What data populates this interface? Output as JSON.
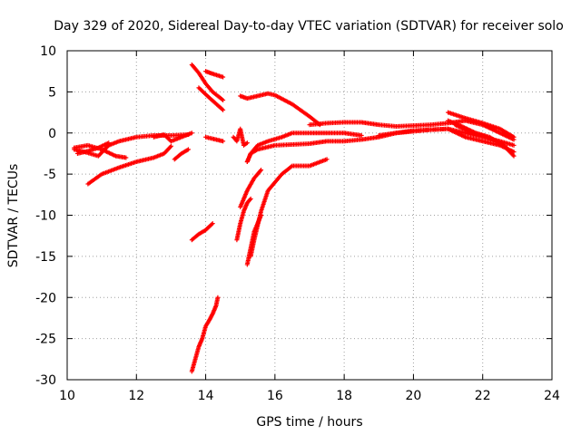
{
  "chart_data": {
    "type": "scatter",
    "title": "Day 329 of 2020, Sidereal Day-to-day VTEC variation (SDTVAR) for receiver solo",
    "xlabel": "GPS time / hours",
    "ylabel": "SDTVAR / TECUs",
    "xlim": [
      10,
      24
    ],
    "ylim": [
      -30,
      10
    ],
    "xticks": [
      10,
      12,
      14,
      16,
      18,
      20,
      22,
      24
    ],
    "yticks": [
      -30,
      -25,
      -20,
      -15,
      -10,
      -5,
      0,
      5,
      10
    ],
    "xtick_labels": [
      "10",
      "12",
      "14",
      "16",
      "18",
      "20",
      "22",
      "24"
    ],
    "ytick_labels": [
      "-30",
      "-25",
      "-20",
      "-15",
      "-10",
      "-5",
      "0",
      "5",
      "10"
    ],
    "grid": true,
    "marker": "+",
    "color": "#ff0000",
    "tracks": [
      {
        "x": [
          10.2,
          10.5,
          10.9,
          11.2,
          11.5,
          12.0,
          12.5,
          13.0,
          13.5
        ],
        "y": [
          -2.0,
          -2.3,
          -2.8,
          -1.5,
          -1.0,
          -0.5,
          -0.3,
          -0.3,
          -0.2
        ]
      },
      {
        "x": [
          10.2,
          10.6,
          11.0,
          11.4,
          11.7
        ],
        "y": [
          -1.8,
          -1.5,
          -2.0,
          -2.8,
          -3.0
        ]
      },
      {
        "x": [
          10.3,
          10.6,
          10.9,
          11.2
        ],
        "y": [
          -2.5,
          -2.2,
          -1.8,
          -1.2
        ]
      },
      {
        "x": [
          10.6,
          11.0,
          11.5,
          12.0,
          12.5,
          12.8,
          13.0
        ],
        "y": [
          -6.2,
          -5.0,
          -4.2,
          -3.5,
          -3.0,
          -2.5,
          -1.6
        ]
      },
      {
        "x": [
          12.5,
          12.8,
          13.0,
          13.3,
          13.6
        ],
        "y": [
          -0.5,
          -0.2,
          -1.0,
          -0.5,
          0.0
        ]
      },
      {
        "x": [
          13.1,
          13.3,
          13.5
        ],
        "y": [
          -3.2,
          -2.5,
          -2.0
        ]
      },
      {
        "x": [
          13.6,
          13.8,
          14.0,
          14.2,
          14.5
        ],
        "y": [
          8.3,
          7.3,
          6.0,
          5.0,
          4.0
        ]
      },
      {
        "x": [
          14.0,
          14.2,
          14.5
        ],
        "y": [
          7.5,
          7.2,
          6.8
        ]
      },
      {
        "x": [
          13.8,
          14.1,
          14.5
        ],
        "y": [
          5.5,
          4.3,
          2.8
        ]
      },
      {
        "x": [
          13.6,
          13.8,
          14.0,
          14.2
        ],
        "y": [
          -13.0,
          -12.3,
          -11.8,
          -11.0
        ]
      },
      {
        "x": [
          13.6,
          13.7,
          13.8,
          13.9,
          14.0,
          14.1,
          14.2,
          14.3,
          14.35
        ],
        "y": [
          -29.0,
          -27.5,
          -26.0,
          -25.0,
          -23.5,
          -22.8,
          -22.0,
          -21.0,
          -20.0
        ]
      },
      {
        "x": [
          14.0,
          14.2,
          14.5
        ],
        "y": [
          -0.5,
          -0.7,
          -1.0
        ]
      },
      {
        "x": [
          14.8,
          14.9,
          15.0,
          15.1,
          15.2
        ],
        "y": [
          -0.5,
          -1.0,
          0.5,
          -1.5,
          -1.2
        ]
      },
      {
        "x": [
          14.9,
          15.0,
          15.1,
          15.2,
          15.3
        ],
        "y": [
          -13.0,
          -11.0,
          -9.5,
          -8.5,
          -8.0
        ]
      },
      {
        "x": [
          15.0,
          15.2,
          15.5,
          15.8,
          16.0,
          16.5,
          17.0,
          17.3
        ],
        "y": [
          4.5,
          4.2,
          4.5,
          4.8,
          4.6,
          3.5,
          2.0,
          1.0
        ]
      },
      {
        "x": [
          15.2,
          15.3,
          15.5,
          15.8,
          16.2,
          16.5,
          17.0,
          17.6,
          18.0,
          18.5
        ],
        "y": [
          -3.5,
          -2.5,
          -1.5,
          -1.0,
          -0.5,
          0.0,
          0.0,
          0.0,
          0.0,
          -0.3
        ]
      },
      {
        "x": [
          15.2,
          15.3,
          15.5,
          16.0,
          17.0,
          17.5,
          18.0,
          18.5,
          19.0,
          19.5,
          20.0,
          20.5,
          21.0,
          21.5,
          22.0,
          22.5,
          22.9
        ],
        "y": [
          -3.5,
          -2.5,
          -2.0,
          -1.5,
          -1.3,
          -1.0,
          -1.0,
          -0.8,
          -0.5,
          0.0,
          0.3,
          0.4,
          0.5,
          0.0,
          -0.5,
          -1.0,
          -1.5
        ]
      },
      {
        "x": [
          15.2,
          15.3,
          15.4,
          15.6
        ],
        "y": [
          -16.0,
          -14.0,
          -12.0,
          -10.0
        ]
      },
      {
        "x": [
          15.3,
          15.4,
          15.6,
          15.8,
          16.2,
          16.5,
          17.0,
          17.5
        ],
        "y": [
          -15.0,
          -13.0,
          -9.5,
          -7.0,
          -5.0,
          -4.0,
          -4.0,
          -3.2
        ]
      },
      {
        "x": [
          15.0,
          15.2,
          15.4,
          15.6
        ],
        "y": [
          -9.0,
          -7.0,
          -5.5,
          -4.5
        ]
      },
      {
        "x": [
          17.0,
          17.5,
          18.0,
          18.5,
          19.0,
          19.5,
          20.0,
          20.5,
          21.0,
          21.5,
          22.0,
          22.5,
          22.9
        ],
        "y": [
          1.0,
          1.2,
          1.3,
          1.3,
          1.0,
          0.8,
          0.9,
          1.0,
          1.2,
          1.5,
          1.0,
          0.0,
          -0.8
        ]
      },
      {
        "x": [
          19.0,
          19.5,
          20.0,
          20.5,
          21.0,
          21.5,
          22.0,
          22.5,
          22.9
        ],
        "y": [
          -0.3,
          0.0,
          0.2,
          0.4,
          0.5,
          -0.5,
          -1.0,
          -1.5,
          -2.3
        ]
      },
      {
        "x": [
          21.0,
          21.5,
          22.0,
          22.5,
          22.9
        ],
        "y": [
          2.5,
          1.8,
          1.2,
          0.5,
          -0.5
        ]
      },
      {
        "x": [
          21.0,
          21.4,
          21.8,
          22.2,
          22.6,
          22.9
        ],
        "y": [
          1.5,
          0.8,
          0.0,
          -0.5,
          -1.5,
          -2.8
        ]
      },
      {
        "x": [
          21.2,
          21.6,
          22.0,
          22.4,
          22.7
        ],
        "y": [
          1.0,
          0.2,
          -0.3,
          -1.0,
          -1.8
        ]
      }
    ]
  }
}
